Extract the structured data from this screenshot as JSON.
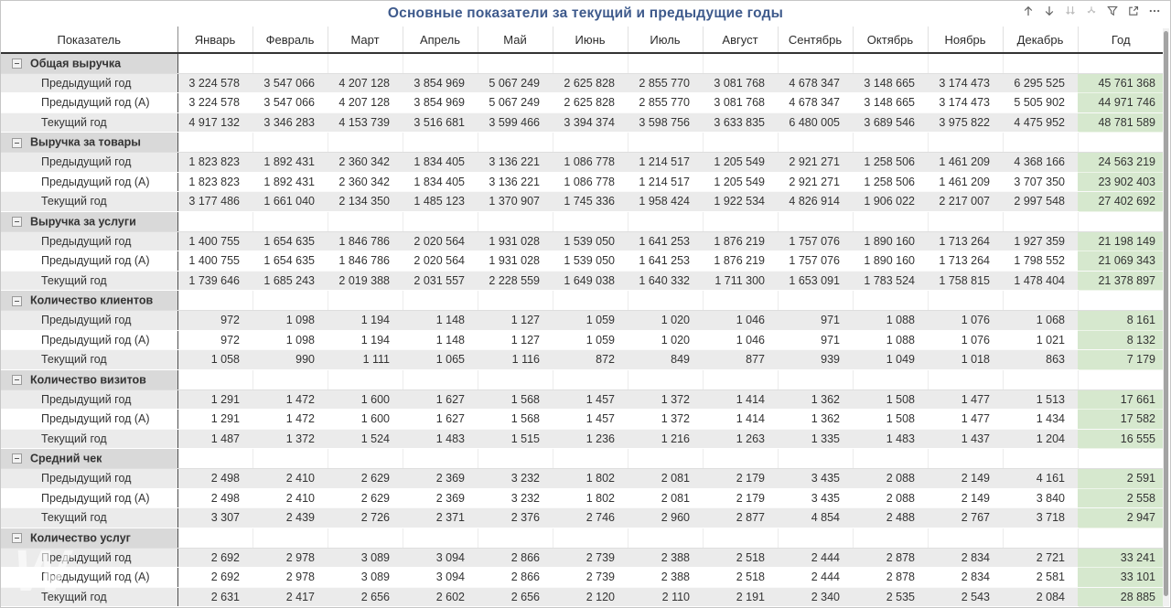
{
  "title": "Основные показатели за текущий и предыдущие годы",
  "toolbar": {
    "icons": [
      "drill-up",
      "drill-down",
      "go-to-next-level",
      "expand-all",
      "filter",
      "focus-mode",
      "more-options"
    ]
  },
  "watermark_glyph": "W",
  "colors": {
    "title": "#3e5a8c",
    "stripe": "#ebebeb",
    "group_label_bg": "#d9d9d9",
    "year_column_bg": "#d6e8ce",
    "divider": "#4d4d4d"
  },
  "table": {
    "columns": [
      "Показатель",
      "Январь",
      "Февраль",
      "Март",
      "Апрель",
      "Май",
      "Июнь",
      "Июль",
      "Август",
      "Сентябрь",
      "Октябрь",
      "Ноябрь",
      "Декабрь",
      "Год"
    ],
    "groups": [
      {
        "name": "Общая выручка",
        "rows": [
          {
            "label": "Предыдущий год",
            "values": [
              "3 224 578",
              "3 547 066",
              "4 207 128",
              "3 854 969",
              "5 067 249",
              "2 625 828",
              "2 855 770",
              "3 081 768",
              "4 678 347",
              "3 148 665",
              "3 174 473",
              "6 295 525"
            ],
            "year": "45 761 368"
          },
          {
            "label": "Предыдущий год (А)",
            "values": [
              "3 224 578",
              "3 547 066",
              "4 207 128",
              "3 854 969",
              "5 067 249",
              "2 625 828",
              "2 855 770",
              "3 081 768",
              "4 678 347",
              "3 148 665",
              "3 174 473",
              "5 505 902"
            ],
            "year": "44 971 746"
          },
          {
            "label": "Текущий год",
            "values": [
              "4 917 132",
              "3 346 283",
              "4 153 739",
              "3 516 681",
              "3 599 466",
              "3 394 374",
              "3 598 756",
              "3 633 835",
              "6 480 005",
              "3 689 546",
              "3 975 822",
              "4 475 952"
            ],
            "year": "48 781 589"
          }
        ]
      },
      {
        "name": "Выручка за товары",
        "rows": [
          {
            "label": "Предыдущий год",
            "values": [
              "1 823 823",
              "1 892 431",
              "2 360 342",
              "1 834 405",
              "3 136 221",
              "1 086 778",
              "1 214 517",
              "1 205 549",
              "2 921 271",
              "1 258 506",
              "1 461 209",
              "4 368 166"
            ],
            "year": "24 563 219"
          },
          {
            "label": "Предыдущий год (А)",
            "values": [
              "1 823 823",
              "1 892 431",
              "2 360 342",
              "1 834 405",
              "3 136 221",
              "1 086 778",
              "1 214 517",
              "1 205 549",
              "2 921 271",
              "1 258 506",
              "1 461 209",
              "3 707 350"
            ],
            "year": "23 902 403"
          },
          {
            "label": "Текущий год",
            "values": [
              "3 177 486",
              "1 661 040",
              "2 134 350",
              "1 485 123",
              "1 370 907",
              "1 745 336",
              "1 958 424",
              "1 922 534",
              "4 826 914",
              "1 906 022",
              "2 217 007",
              "2 997 548"
            ],
            "year": "27 402 692"
          }
        ]
      },
      {
        "name": "Выручка за услуги",
        "rows": [
          {
            "label": "Предыдущий год",
            "values": [
              "1 400 755",
              "1 654 635",
              "1 846 786",
              "2 020 564",
              "1 931 028",
              "1 539 050",
              "1 641 253",
              "1 876 219",
              "1 757 076",
              "1 890 160",
              "1 713 264",
              "1 927 359"
            ],
            "year": "21 198 149"
          },
          {
            "label": "Предыдущий год (А)",
            "values": [
              "1 400 755",
              "1 654 635",
              "1 846 786",
              "2 020 564",
              "1 931 028",
              "1 539 050",
              "1 641 253",
              "1 876 219",
              "1 757 076",
              "1 890 160",
              "1 713 264",
              "1 798 552"
            ],
            "year": "21 069 343"
          },
          {
            "label": "Текущий год",
            "values": [
              "1 739 646",
              "1 685 243",
              "2 019 388",
              "2 031 557",
              "2 228 559",
              "1 649 038",
              "1 640 332",
              "1 711 300",
              "1 653 091",
              "1 783 524",
              "1 758 815",
              "1 478 404"
            ],
            "year": "21 378 897"
          }
        ]
      },
      {
        "name": "Количество клиентов",
        "rows": [
          {
            "label": "Предыдущий год",
            "values": [
              "972",
              "1 098",
              "1 194",
              "1 148",
              "1 127",
              "1 059",
              "1 020",
              "1 046",
              "971",
              "1 088",
              "1 076",
              "1 068"
            ],
            "year": "8 161"
          },
          {
            "label": "Предыдущий год (А)",
            "values": [
              "972",
              "1 098",
              "1 194",
              "1 148",
              "1 127",
              "1 059",
              "1 020",
              "1 046",
              "971",
              "1 088",
              "1 076",
              "1 021"
            ],
            "year": "8 132"
          },
          {
            "label": "Текущий год",
            "values": [
              "1 058",
              "990",
              "1 111",
              "1 065",
              "1 116",
              "872",
              "849",
              "877",
              "939",
              "1 049",
              "1 018",
              "863"
            ],
            "year": "7 179"
          }
        ]
      },
      {
        "name": "Количество визитов",
        "rows": [
          {
            "label": "Предыдущий год",
            "values": [
              "1 291",
              "1 472",
              "1 600",
              "1 627",
              "1 568",
              "1 457",
              "1 372",
              "1 414",
              "1 362",
              "1 508",
              "1 477",
              "1 513"
            ],
            "year": "17 661"
          },
          {
            "label": "Предыдущий год (А)",
            "values": [
              "1 291",
              "1 472",
              "1 600",
              "1 627",
              "1 568",
              "1 457",
              "1 372",
              "1 414",
              "1 362",
              "1 508",
              "1 477",
              "1 434"
            ],
            "year": "17 582"
          },
          {
            "label": "Текущий год",
            "values": [
              "1 487",
              "1 372",
              "1 524",
              "1 483",
              "1 515",
              "1 236",
              "1 216",
              "1 263",
              "1 335",
              "1 483",
              "1 437",
              "1 204"
            ],
            "year": "16 555"
          }
        ]
      },
      {
        "name": "Средний чек",
        "rows": [
          {
            "label": "Предыдущий год",
            "values": [
              "2 498",
              "2 410",
              "2 629",
              "2 369",
              "3 232",
              "1 802",
              "2 081",
              "2 179",
              "3 435",
              "2 088",
              "2 149",
              "4 161"
            ],
            "year": "2 591"
          },
          {
            "label": "Предыдущий год (А)",
            "values": [
              "2 498",
              "2 410",
              "2 629",
              "2 369",
              "3 232",
              "1 802",
              "2 081",
              "2 179",
              "3 435",
              "2 088",
              "2 149",
              "3 840"
            ],
            "year": "2 558"
          },
          {
            "label": "Текущий год",
            "values": [
              "3 307",
              "2 439",
              "2 726",
              "2 371",
              "2 376",
              "2 746",
              "2 960",
              "2 877",
              "4 854",
              "2 488",
              "2 767",
              "3 718"
            ],
            "year": "2 947"
          }
        ]
      },
      {
        "name": "Количество услуг",
        "rows": [
          {
            "label": "Предыдущий год",
            "values": [
              "2 692",
              "2 978",
              "3 089",
              "3 094",
              "2 866",
              "2 739",
              "2 388",
              "2 518",
              "2 444",
              "2 878",
              "2 834",
              "2 721"
            ],
            "year": "33 241"
          },
          {
            "label": "Предыдущий год (А)",
            "values": [
              "2 692",
              "2 978",
              "3 089",
              "3 094",
              "2 866",
              "2 739",
              "2 388",
              "2 518",
              "2 444",
              "2 878",
              "2 834",
              "2 581"
            ],
            "year": "33 101"
          },
          {
            "label": "Текущий год",
            "values": [
              "2 631",
              "2 417",
              "2 656",
              "2 602",
              "2 656",
              "2 120",
              "2 110",
              "2 191",
              "2 340",
              "2 535",
              "2 543",
              "2 084"
            ],
            "year": "28 885"
          }
        ]
      },
      {
        "name": "",
        "rows": []
      }
    ]
  }
}
